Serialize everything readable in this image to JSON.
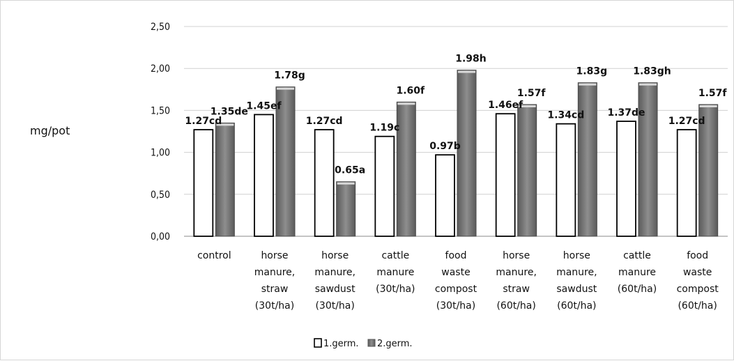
{
  "chart_data": {
    "type": "bar",
    "ylabel": "mg/pot",
    "ylim": [
      0,
      2.5
    ],
    "yticks": [
      "0,00",
      "0,50",
      "1,00",
      "1,50",
      "2,00",
      "2,50"
    ],
    "ytick_values": [
      0,
      0.5,
      1.0,
      1.5,
      2.0,
      2.5
    ],
    "grid": true,
    "legend_position": "bottom",
    "categories": [
      [
        "control"
      ],
      [
        "horse",
        "manure,",
        "straw",
        "(30t/ha)"
      ],
      [
        "horse",
        "manure,",
        "sawdust",
        "(30t/ha)"
      ],
      [
        "cattle",
        "manure",
        "(30t/ha)"
      ],
      [
        "food",
        "waste",
        "compost",
        "(30t/ha)"
      ],
      [
        "horse",
        "manure,",
        "straw",
        "(60t/ha)"
      ],
      [
        "horse",
        "manure,",
        "sawdust",
        "(60t/ha)"
      ],
      [
        "cattle",
        "manure",
        "(60t/ha)"
      ],
      [
        "food",
        "waste",
        "compost",
        "(60t/ha)"
      ]
    ],
    "series": [
      {
        "name": "1.germ.",
        "color": "#ffffff",
        "values": [
          1.27,
          1.45,
          1.27,
          1.19,
          0.97,
          1.46,
          1.34,
          1.37,
          1.27
        ],
        "labels": [
          "1.27cd",
          "1.45ef",
          "1.27cd",
          "1.19c",
          "0.97b",
          "1.46ef",
          "1.34cd",
          "1.37de",
          "1.27cd"
        ]
      },
      {
        "name": "2.germ.",
        "color": "#7f7f7f",
        "values": [
          1.35,
          1.78,
          0.65,
          1.6,
          1.98,
          1.57,
          1.83,
          1.83,
          1.57
        ],
        "labels": [
          "1.35de",
          "1.78g",
          "0.65a",
          "1.60f",
          "1.98h",
          "1.57f",
          "1.83g",
          "1.83gh",
          "1.57f"
        ]
      }
    ]
  }
}
